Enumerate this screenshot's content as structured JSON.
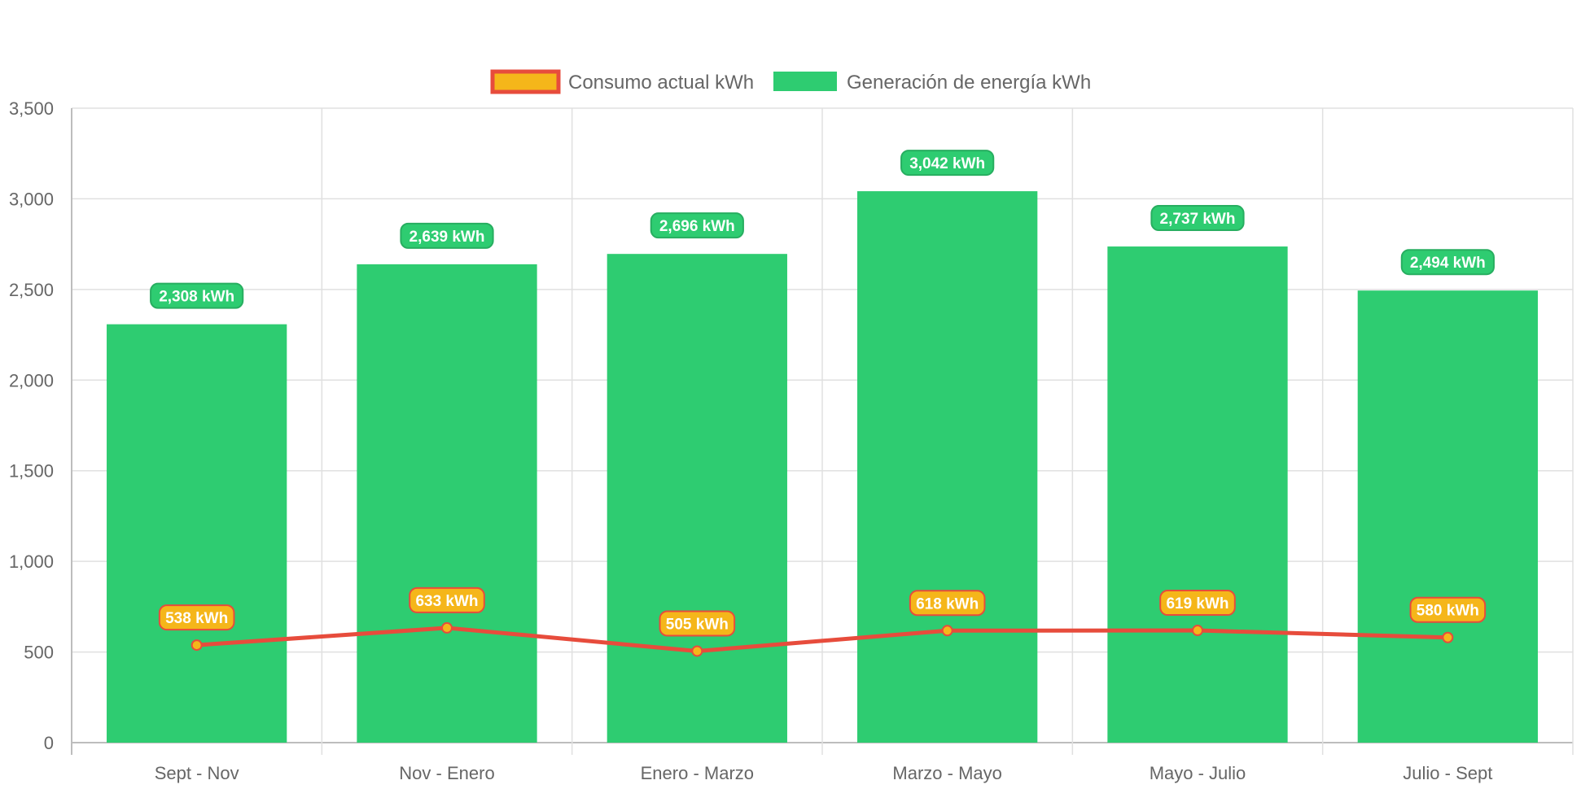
{
  "chart_data": {
    "type": "bar",
    "categories": [
      "Sept - Nov",
      "Nov - Enero",
      "Enero - Marzo",
      "Marzo - Mayo",
      "Mayo - Julio",
      "Julio - Sept"
    ],
    "series": [
      {
        "name": "Consumo actual kWh",
        "type": "line",
        "values": [
          538,
          633,
          505,
          618,
          619,
          580
        ],
        "labels": [
          "538 kWh",
          "633 kWh",
          "505 kWh",
          "618 kWh",
          "619 kWh",
          "580 kWh"
        ],
        "line_color": "#e74c3c",
        "fill_color": "#f5b61a"
      },
      {
        "name": "Generación de energía kWh",
        "type": "bar",
        "values": [
          2308,
          2639,
          2696,
          3042,
          2737,
          2494
        ],
        "labels": [
          "2,308 kWh",
          "2,639 kWh",
          "2,696 kWh",
          "3,042 kWh",
          "2,737 kWh",
          "2,494 kWh"
        ],
        "color": "#2ecc71",
        "label_border": "#27ae60"
      }
    ],
    "ylim": [
      0,
      3500
    ],
    "yticks": [
      "0",
      "500",
      "1,000",
      "1,500",
      "2,000",
      "2,500",
      "3,000",
      "3,500"
    ],
    "ytick_values": [
      0,
      500,
      1000,
      1500,
      2000,
      2500,
      3000,
      3500
    ],
    "grid": true,
    "legend": "top-center",
    "xlabel": "",
    "ylabel": "",
    "title": ""
  }
}
